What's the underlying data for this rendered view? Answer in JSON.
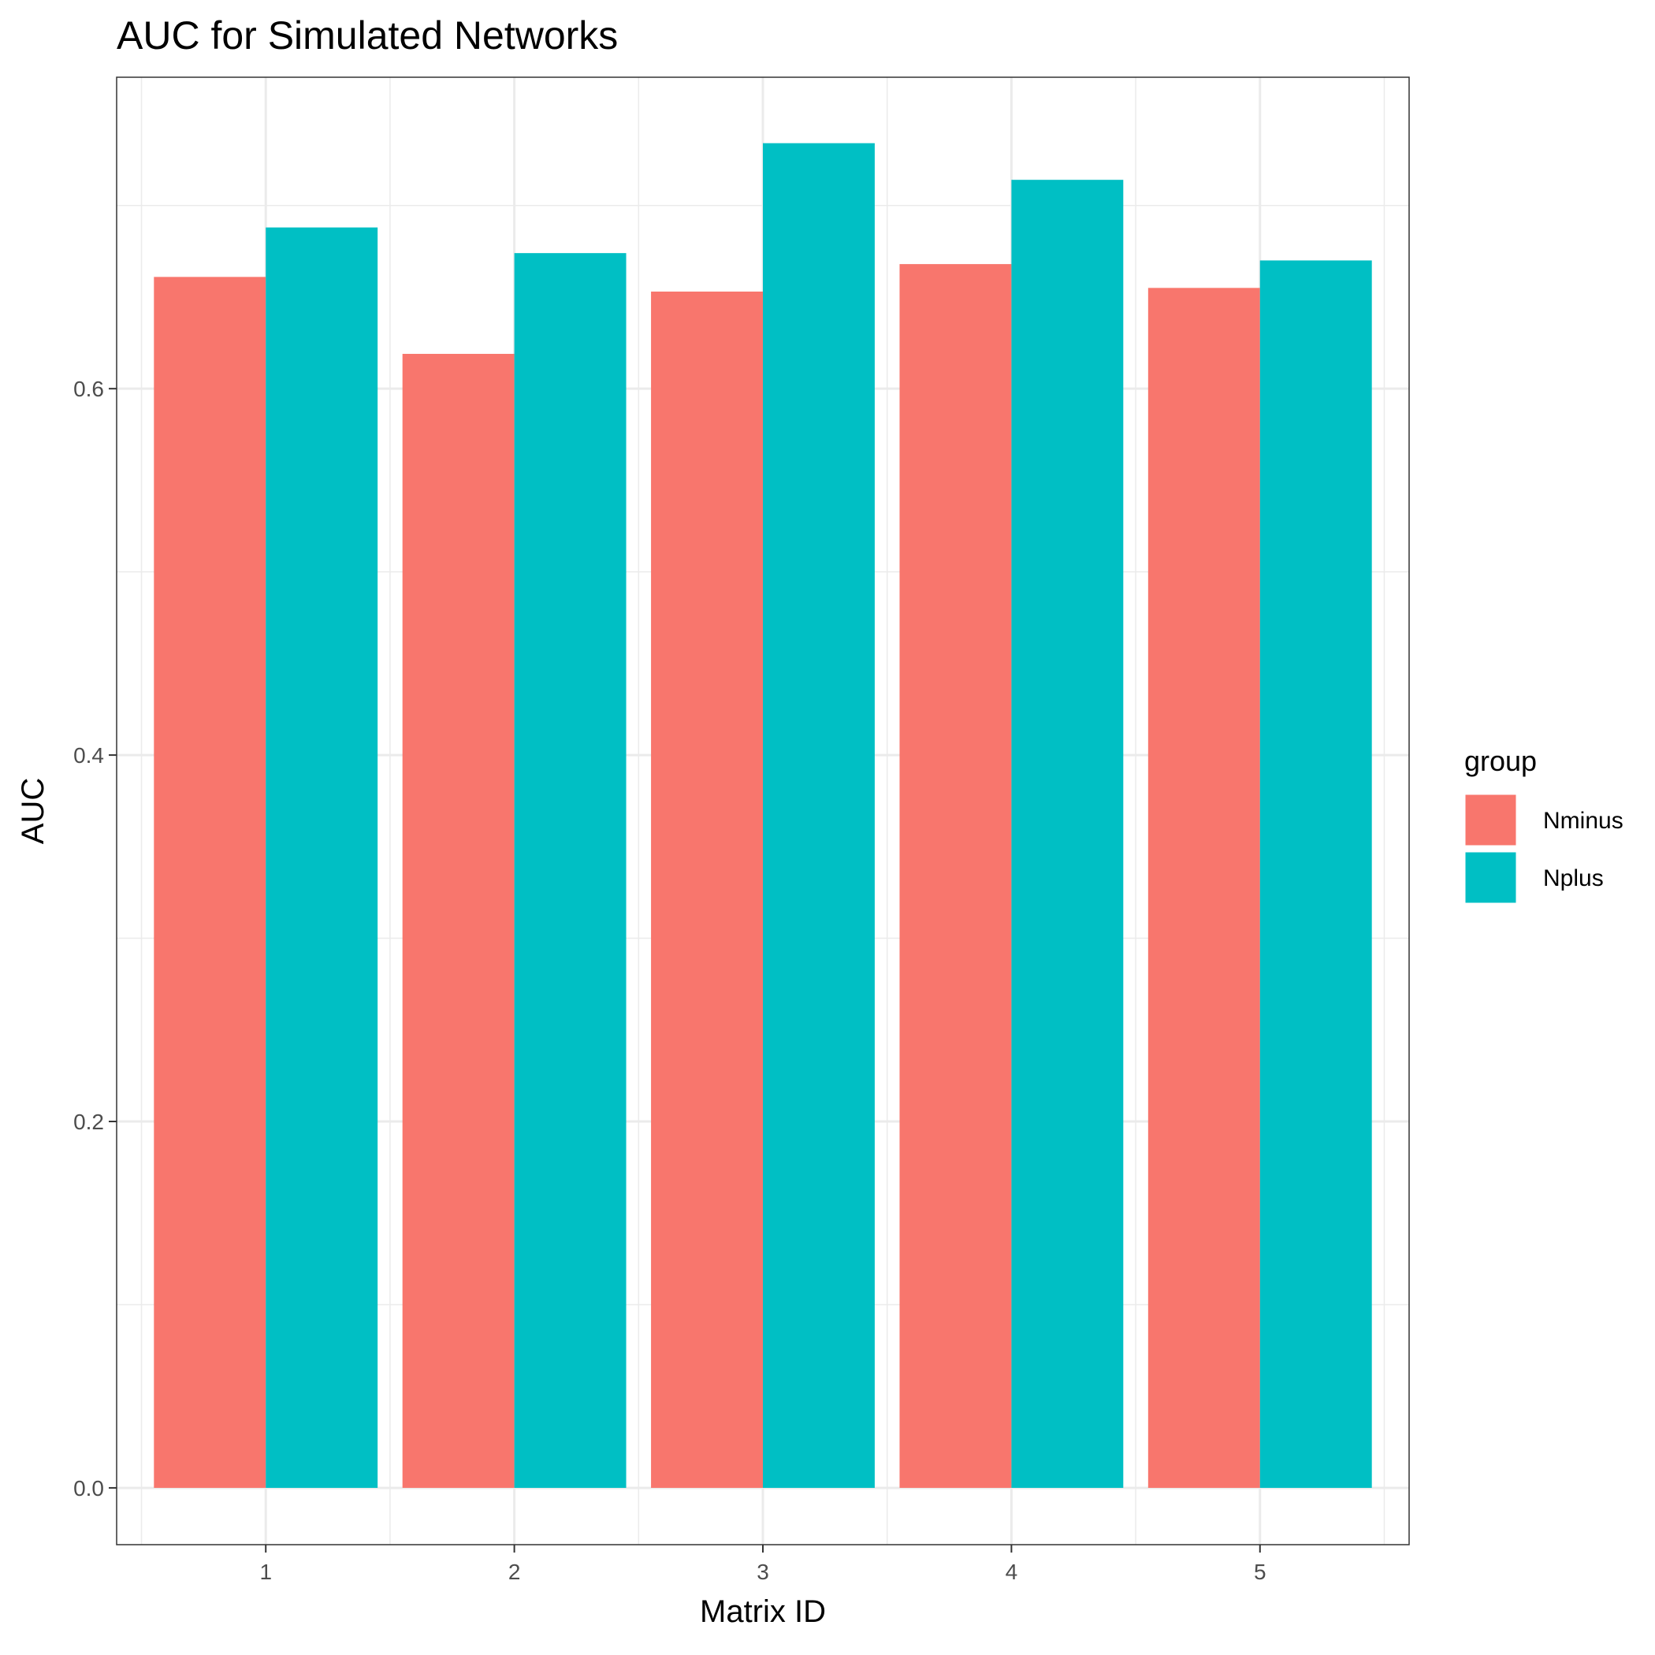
{
  "chart_data": {
    "type": "bar",
    "title": "AUC for Simulated Networks",
    "xlabel": "Matrix ID",
    "ylabel": "AUC",
    "categories": [
      "1",
      "2",
      "3",
      "4",
      "5"
    ],
    "series": [
      {
        "name": "Nminus",
        "color": "#F8766D",
        "values": [
          0.661,
          0.619,
          0.653,
          0.668,
          0.655
        ]
      },
      {
        "name": "Nplus",
        "color": "#00BFC4",
        "values": [
          0.688,
          0.674,
          0.734,
          0.714,
          0.67
        ]
      }
    ],
    "ylim": [
      -0.031,
      0.77
    ],
    "yticks": [
      0.0,
      0.2,
      0.4,
      0.6
    ],
    "ytick_labels": [
      "0.0",
      "0.2",
      "0.4",
      "0.6"
    ],
    "grid": true,
    "legend": {
      "title": "group",
      "position": "right"
    }
  }
}
